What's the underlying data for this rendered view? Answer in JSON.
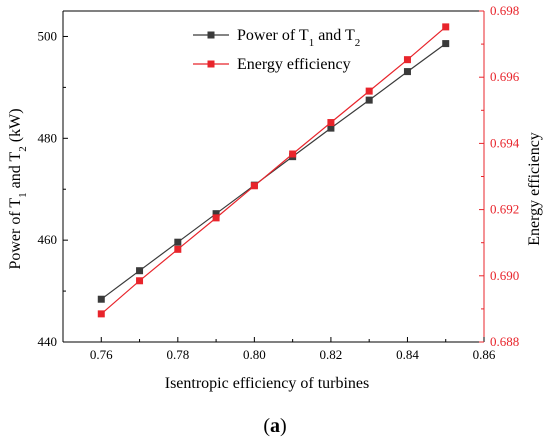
{
  "chart_data": {
    "type": "line",
    "x": [
      0.76,
      0.77,
      0.78,
      0.79,
      0.8,
      0.81,
      0.82,
      0.83,
      0.84,
      0.85
    ],
    "xlabel": "Isentropic efficiency of turbines",
    "xlim": [
      0.75,
      0.86
    ],
    "xticks": [
      "0.76",
      "0.78",
      "0.80",
      "0.82",
      "0.84",
      "0.86"
    ],
    "xtick_values": [
      0.76,
      0.78,
      0.8,
      0.82,
      0.84,
      0.86
    ],
    "y_left": {
      "label_parts": [
        "Power of T",
        "1",
        " and T",
        "2",
        " (kW)"
      ],
      "lim": [
        440,
        505
      ],
      "ticks": [
        "440",
        "460",
        "480",
        "500"
      ],
      "tick_values": [
        440,
        460,
        480,
        500
      ],
      "color": "#000000"
    },
    "y_right": {
      "label": "Energy efficiency",
      "lim": [
        0.688,
        0.698
      ],
      "ticks": [
        "0.688",
        "0.690",
        "0.692",
        "0.694",
        "0.696",
        "0.698"
      ],
      "tick_values": [
        0.688,
        0.69,
        0.692,
        0.694,
        0.696,
        0.698
      ],
      "color": "#e8242b"
    },
    "series": [
      {
        "name_parts": [
          "Power of T",
          "1",
          " and T",
          "2"
        ],
        "axis": "left",
        "color": "#3a3a3a",
        "marker": "square",
        "values": [
          448.4,
          454.0,
          459.6,
          465.2,
          470.8,
          476.4,
          482.0,
          487.5,
          493.1,
          498.6
        ]
      },
      {
        "name_parts": [
          "Energy efficiency"
        ],
        "axis": "right",
        "color": "#e8242b",
        "marker": "square",
        "values": [
          0.68885,
          0.68985,
          0.6908,
          0.69175,
          0.69272,
          0.69368,
          0.69463,
          0.69558,
          0.69653,
          0.69752
        ]
      }
    ],
    "legend": "top-center",
    "grid": false
  },
  "caption": {
    "open": "(",
    "letter": "a",
    "close": ")"
  }
}
